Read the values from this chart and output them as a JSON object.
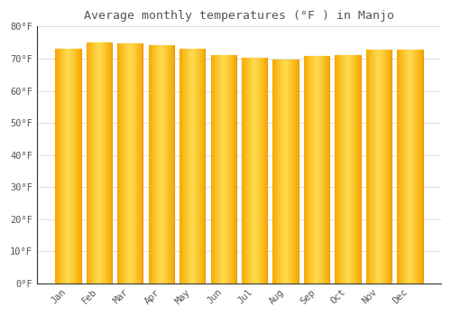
{
  "title": "Average monthly temperatures (°F ) in Manjo",
  "months": [
    "Jan",
    "Feb",
    "Mar",
    "Apr",
    "May",
    "Jun",
    "Jul",
    "Aug",
    "Sep",
    "Oct",
    "Nov",
    "Dec"
  ],
  "values": [
    73.2,
    75.0,
    74.7,
    74.2,
    73.2,
    71.2,
    70.2,
    69.8,
    70.8,
    71.2,
    72.7,
    72.7
  ],
  "bar_color_edge": "#E8960A",
  "bar_color_center": "#FFD94E",
  "bar_color_main": "#F5A800",
  "background_color": "#FFFFFF",
  "grid_color": "#DDDDDD",
  "text_color": "#555555",
  "title_font": "monospace",
  "tick_font": "monospace",
  "ylim": [
    0,
    80
  ],
  "yticks": [
    0,
    10,
    20,
    30,
    40,
    50,
    60,
    70,
    80
  ],
  "ytick_labels": [
    "0°F",
    "10°F",
    "20°F",
    "30°F",
    "40°F",
    "50°F",
    "60°F",
    "70°F",
    "80°F"
  ],
  "bar_width": 0.82,
  "figsize": [
    5.0,
    3.5
  ],
  "dpi": 100
}
